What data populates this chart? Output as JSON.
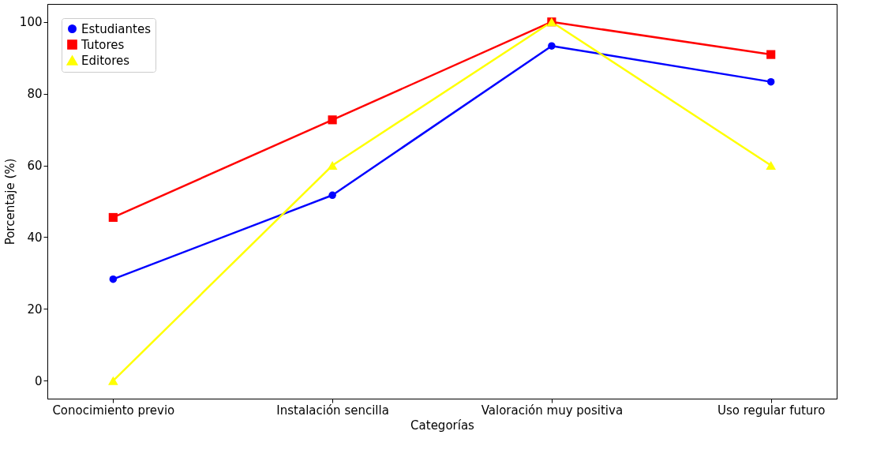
{
  "chart_data": {
    "type": "line",
    "xlabel": "Categorías",
    "ylabel": "Porcentaje (%)",
    "categories": [
      "Conocimiento previo",
      "Instalación sencilla",
      "Valoración muy positiva",
      "Uso regular futuro"
    ],
    "series": [
      {
        "name": "Estudiantes",
        "color": "#0000ff",
        "marker": "circle",
        "values": [
          28.3,
          51.7,
          93.3,
          83.3
        ]
      },
      {
        "name": "Tutores",
        "color": "#ff0000",
        "marker": "square",
        "values": [
          45.5,
          72.7,
          100,
          90.9
        ]
      },
      {
        "name": "Editores",
        "color": "#ffff00",
        "marker": "triangle",
        "values": [
          0,
          60,
          100,
          60
        ]
      }
    ],
    "ylim": [
      -5,
      105
    ],
    "yticks": [
      0,
      20,
      40,
      60,
      80,
      100
    ],
    "grid": false,
    "legend": "top left",
    "line_style": "solid"
  }
}
